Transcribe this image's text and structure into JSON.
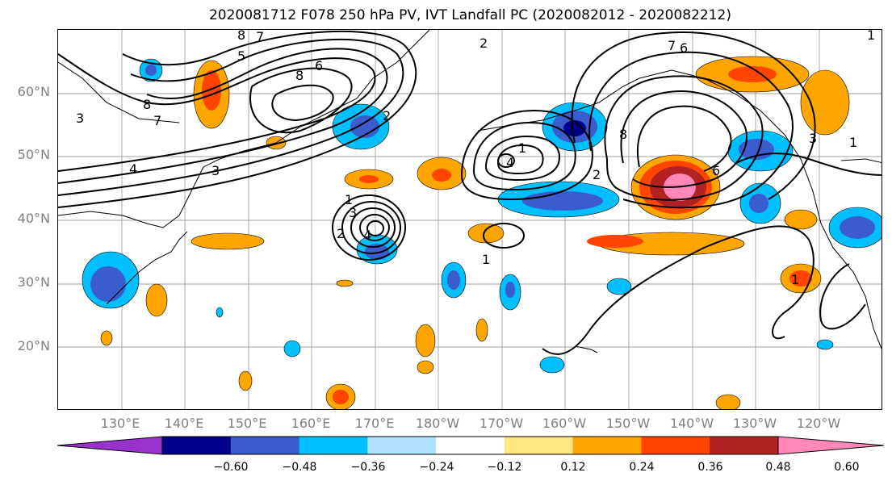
{
  "title": "2020081712 F078 250 hPa PV, IVT Landfall PC (2020082012 - 2020082212)",
  "lat_labels": [
    "60°N",
    "50°N",
    "40°N",
    "30°N",
    "20°N"
  ],
  "lon_labels": [
    "130°E",
    "140°E",
    "150°E",
    "160°E",
    "170°E",
    "180°W",
    "170°W",
    "160°W",
    "150°W",
    "140°W",
    "130°W",
    "120°W"
  ],
  "contour_labels": [
    "8",
    "7",
    "5",
    "6",
    "8",
    "8",
    "7",
    "3",
    "4",
    "3",
    "2",
    "2",
    "1",
    "1",
    "1",
    "2",
    "3",
    "4",
    "4",
    "2",
    "1",
    "7",
    "6",
    "8",
    "6",
    "3",
    "1",
    "1"
  ],
  "colorbar": {
    "ticks": [
      "−0.60",
      "−0.48",
      "−0.36",
      "−0.24",
      "−0.12",
      "0.12",
      "0.24",
      "0.36",
      "0.48",
      "0.60"
    ],
    "colors": [
      "#9932cc",
      "#00008b",
      "#3a5ccc",
      "#00bfff",
      "#b0e2ff",
      "#ffffff",
      "#ffe680",
      "#ffa500",
      "#ff4500",
      "#b22222",
      "#ff88b8"
    ]
  }
}
